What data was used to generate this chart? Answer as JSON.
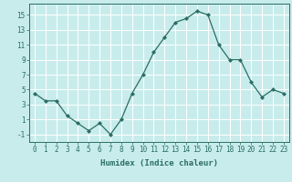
{
  "x": [
    0,
    1,
    2,
    3,
    4,
    5,
    6,
    7,
    8,
    9,
    10,
    11,
    12,
    13,
    14,
    15,
    16,
    17,
    18,
    19,
    20,
    21,
    22,
    23
  ],
  "y": [
    4.5,
    3.5,
    3.5,
    1.5,
    0.5,
    -0.5,
    0.5,
    -1.0,
    1.0,
    4.5,
    7.0,
    10.0,
    12.0,
    14.0,
    14.5,
    15.5,
    15.0,
    11.0,
    9.0,
    9.0,
    6.0,
    4.0,
    5.0,
    4.5
  ],
  "xlabel": "Humidex (Indice chaleur)",
  "xlim": [
    -0.5,
    23.5
  ],
  "ylim": [
    -2,
    16.5
  ],
  "yticks": [
    -1,
    1,
    3,
    5,
    7,
    9,
    11,
    13,
    15
  ],
  "xticks": [
    0,
    1,
    2,
    3,
    4,
    5,
    6,
    7,
    8,
    9,
    10,
    11,
    12,
    13,
    14,
    15,
    16,
    17,
    18,
    19,
    20,
    21,
    22,
    23
  ],
  "line_color": "#2a6e63",
  "bg_color": "#c8ecec",
  "grid_color": "#ffffff",
  "tick_color": "#2a6e63",
  "tick_label_size": 5.5,
  "xlabel_size": 6.5
}
